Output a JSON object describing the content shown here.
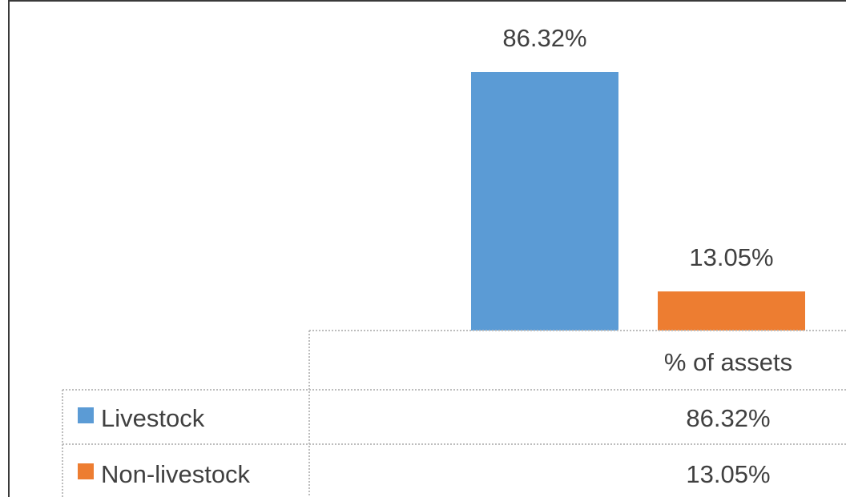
{
  "chart_data": {
    "type": "bar",
    "categories": [
      "% of assets"
    ],
    "series": [
      {
        "name": "Livestock",
        "values": [
          86.32
        ],
        "labels": [
          "86.32%"
        ],
        "color": "#5B9BD5"
      },
      {
        "name": "Non-livestock",
        "values": [
          13.05
        ],
        "labels": [
          "13.05%"
        ],
        "color": "#ED7D31"
      }
    ],
    "ylim": [
      0,
      100
    ],
    "data_table": true,
    "grid": false
  }
}
